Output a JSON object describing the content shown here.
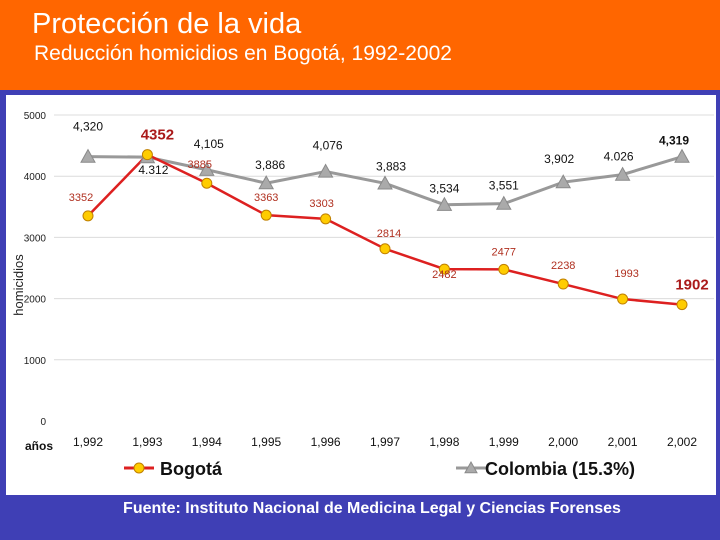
{
  "slide": {
    "title": "Protección de la vida",
    "subtitle": "Reducción homicidios en Bogotá, 1992-2002",
    "source": "Fuente: Instituto Nacional de Medicina Legal y Ciencias Forenses"
  },
  "chart_data": {
    "type": "line",
    "title": "Reducción homicidios en Bogotá, 1992-2002",
    "ylabel": "homicidios",
    "xlabel": "años",
    "ylim": [
      0,
      5000
    ],
    "y_ticks": [
      "0",
      "1000",
      "2000",
      "3000",
      "4000",
      "5000"
    ],
    "x_tick_labels": [
      "1,992",
      "1,993",
      "1,994",
      "1,995",
      "1,996",
      "1,997",
      "1,998",
      "1,999",
      "2,000",
      "2,001",
      "2,002"
    ],
    "grid": true,
    "legend_position": "bottom",
    "series": [
      {
        "name": "Bogotá",
        "color": "#dd2020",
        "marker_color": "#ffcc00",
        "values": [
          3352,
          4352,
          3885,
          3363,
          3303,
          2814,
          2482,
          2477,
          2238,
          1993,
          1902
        ],
        "labels": [
          "3352",
          "4352",
          "3885",
          "3363",
          "3303",
          "2814",
          "2482",
          "2477",
          "2238",
          "1993",
          "1902"
        ]
      },
      {
        "name": "Colombia (15.3%)",
        "color": "#999999",
        "marker_color": "#aaaaaa",
        "values": [
          4320,
          4312,
          4105,
          3886,
          4076,
          3883,
          3534,
          3551,
          3902,
          4026,
          4319
        ],
        "labels": [
          "4,320",
          "4.312",
          "4,105",
          "3,886",
          "4,076",
          "3,883",
          "3,534",
          "3,551",
          "3,902",
          "4.026",
          "4,319"
        ]
      }
    ]
  }
}
